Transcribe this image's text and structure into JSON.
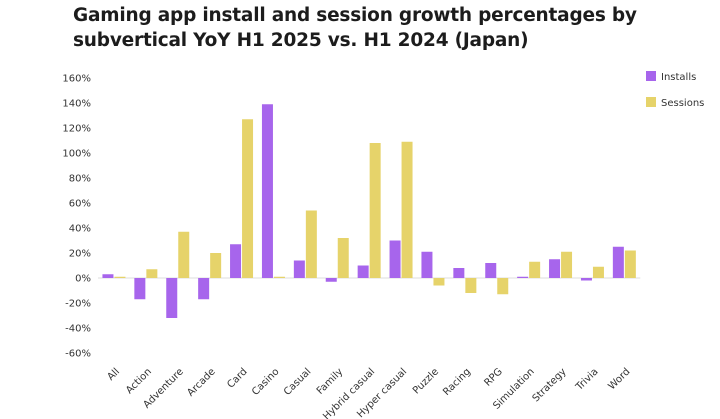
{
  "chart_data": {
    "type": "bar",
    "title_lines": [
      "Gaming app install and session growth percentages by",
      "subvertical YoY H1 2025 vs. H1 2024 (Japan)"
    ],
    "categories": [
      "All",
      "Action",
      "Adventure",
      "Arcade",
      "Card",
      "Casino",
      "Casual",
      "Family",
      "Hybrid casual",
      "Hyper casual",
      "Puzzle",
      "Racing",
      "RPG",
      "Simulation",
      "Strategy",
      "Trivia",
      "Word"
    ],
    "series": [
      {
        "name": "Installs",
        "color": "#a765ec",
        "values": [
          3,
          -17,
          -32,
          -17,
          27,
          139,
          14,
          -3,
          10,
          30,
          21,
          8,
          12,
          1,
          15,
          -2,
          25
        ]
      },
      {
        "name": "Sessions",
        "color": "#e6d36a",
        "values": [
          1,
          7,
          37,
          20,
          127,
          1,
          54,
          32,
          108,
          109,
          -6,
          -12,
          -13,
          13,
          21,
          9,
          22
        ]
      }
    ],
    "yticks": [
      "160%",
      "140%",
      "120%",
      "100%",
      "80%",
      "60%",
      "40%",
      "20%",
      "0%",
      "-20%",
      "-40%",
      "-60%"
    ],
    "ylim": [
      -60,
      160
    ],
    "legend_position": "top-right",
    "grid": false
  }
}
